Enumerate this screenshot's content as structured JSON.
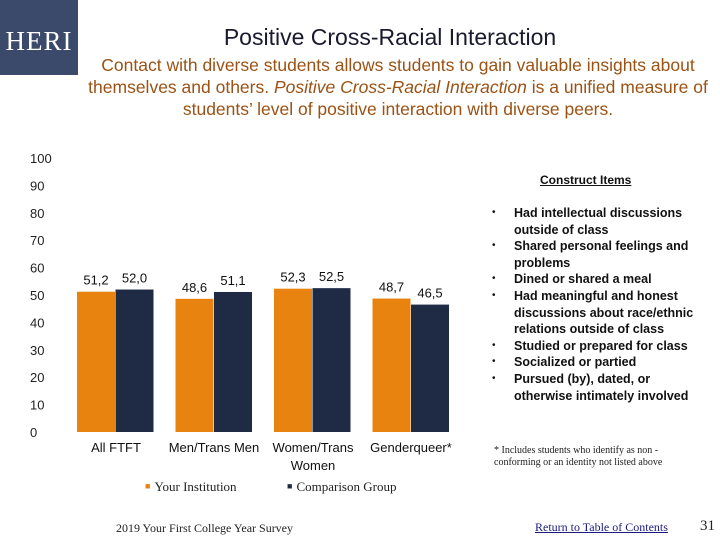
{
  "logo": {
    "text": "HERI"
  },
  "header": {
    "title": "Positive Cross-Racial Interaction",
    "subtitle_part1": "Contact with diverse students allows students to gain valuable insights about themselves and others.",
    "subtitle_italic": "Positive Cross-Racial Interaction",
    "subtitle_part2": "is a unified measure of students’ level of positive interaction with diverse peers."
  },
  "colors": {
    "your_institution": "#e8830f",
    "comparison_group": "#1f2b45",
    "logo_bg": "#3b4a6b",
    "subtitle": "#9b5214"
  },
  "chart_data": {
    "type": "bar",
    "categories": [
      "All FTFT",
      "Men/Trans Men",
      "Women/Trans Women",
      "Genderqueer*"
    ],
    "series": [
      {
        "name": "Your Institution",
        "values": [
          51.2,
          48.6,
          52.3,
          48.7
        ],
        "labels": [
          "51,2",
          "48,6",
          "52,3",
          "48,7"
        ]
      },
      {
        "name": "Comparison Group",
        "values": [
          52.0,
          51.1,
          52.5,
          46.5
        ],
        "labels": [
          "52,0",
          "51,1",
          "52,5",
          "46,5"
        ]
      }
    ],
    "ylim": [
      0,
      100
    ],
    "yticks": [
      0,
      10,
      20,
      30,
      40,
      50,
      60,
      70,
      80,
      90,
      100
    ],
    "title": "",
    "xlabel": "",
    "ylabel": "",
    "legend_position": "bottom"
  },
  "legend": {
    "your_institution": "Your Institution",
    "comparison_group": "Comparison Group",
    "marker": "■"
  },
  "construct": {
    "heading": "Construct Items",
    "bullet": "•",
    "items": [
      "Had intellectual discussions outside of class",
      "Shared personal feelings and problems",
      "Dined or shared a meal",
      "Had meaningful and honest discussions about race/ethnic relations outside of class",
      "Studied or prepared for class",
      "Socialized or partied",
      "Pursued (by), dated, or otherwise intimately involved"
    ]
  },
  "footnote": "* Includes students who identify as non - conforming or an identity not listed above",
  "footer": {
    "survey": "2019 Your First College Year Survey",
    "link": "Return to Table of Contents",
    "page": "31"
  }
}
